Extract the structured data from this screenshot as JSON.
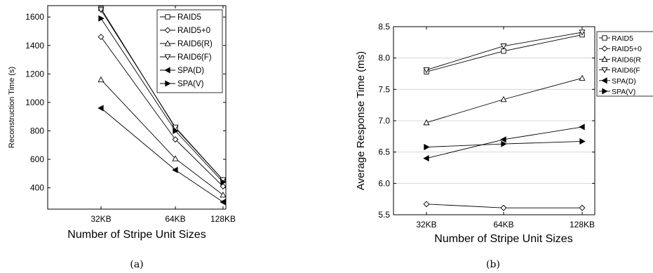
{
  "chart_data": [
    {
      "type": "line",
      "categories": [
        "32KB",
        "64KB",
        "128KB"
      ],
      "xlabel": "Number of Stripe Unit Sizes",
      "ylabel": "Reconstruction Time (s)",
      "ylim": [
        250,
        1680
      ],
      "yticks": [
        400,
        600,
        800,
        1000,
        1200,
        1400,
        1600
      ],
      "legend": "top-right",
      "caption": "(a)",
      "series": [
        {
          "name": "RAID5",
          "marker": "square",
          "values": [
            1660,
            820,
            455
          ]
        },
        {
          "name": "RAID5+0",
          "marker": "diamond",
          "values": [
            1460,
            740,
            410
          ]
        },
        {
          "name": "RAID6(R)",
          "marker": "triangle-up",
          "values": [
            1160,
            605,
            350
          ]
        },
        {
          "name": "RAID6(F)",
          "marker": "triangle-down",
          "values": [
            1650,
            825,
            455
          ]
        },
        {
          "name": "SPA(D)",
          "marker": "triangle-left",
          "values": [
            960,
            525,
            300
          ]
        },
        {
          "name": "SPA(V)",
          "marker": "triangle-right",
          "values": [
            1590,
            800,
            440
          ]
        }
      ]
    },
    {
      "type": "line",
      "categories": [
        "32KB",
        "64KB",
        "128KB"
      ],
      "xlabel": "Number of Stripe Unit Sizes",
      "ylabel": "Average Response Time (ms)",
      "ylim": [
        5.5,
        8.5
      ],
      "yticks": [
        5.5,
        6.0,
        6.5,
        7.0,
        7.5,
        8.0,
        8.5
      ],
      "grid": true,
      "legend": "top-right",
      "caption": "(b)",
      "series": [
        {
          "name": "RAID5",
          "label": "RAID5",
          "marker": "square",
          "values": [
            7.78,
            8.11,
            8.37
          ]
        },
        {
          "name": "RAID5+0",
          "label": "RAID5+0",
          "marker": "diamond",
          "values": [
            5.67,
            5.61,
            5.61
          ]
        },
        {
          "name": "RAID6(R)",
          "label": "RAID6(R",
          "marker": "triangle-up",
          "values": [
            6.97,
            7.34,
            7.68
          ]
        },
        {
          "name": "RAID6(F)",
          "label": "RAID6(F",
          "marker": "triangle-down",
          "values": [
            7.81,
            8.19,
            8.41
          ]
        },
        {
          "name": "SPA(D)",
          "label": "SPA(D)",
          "marker": "triangle-left",
          "values": [
            6.4,
            6.7,
            6.9
          ]
        },
        {
          "name": "SPA(V)",
          "label": "SPA(V)",
          "marker": "triangle-right",
          "values": [
            6.58,
            6.63,
            6.67
          ]
        }
      ]
    }
  ]
}
